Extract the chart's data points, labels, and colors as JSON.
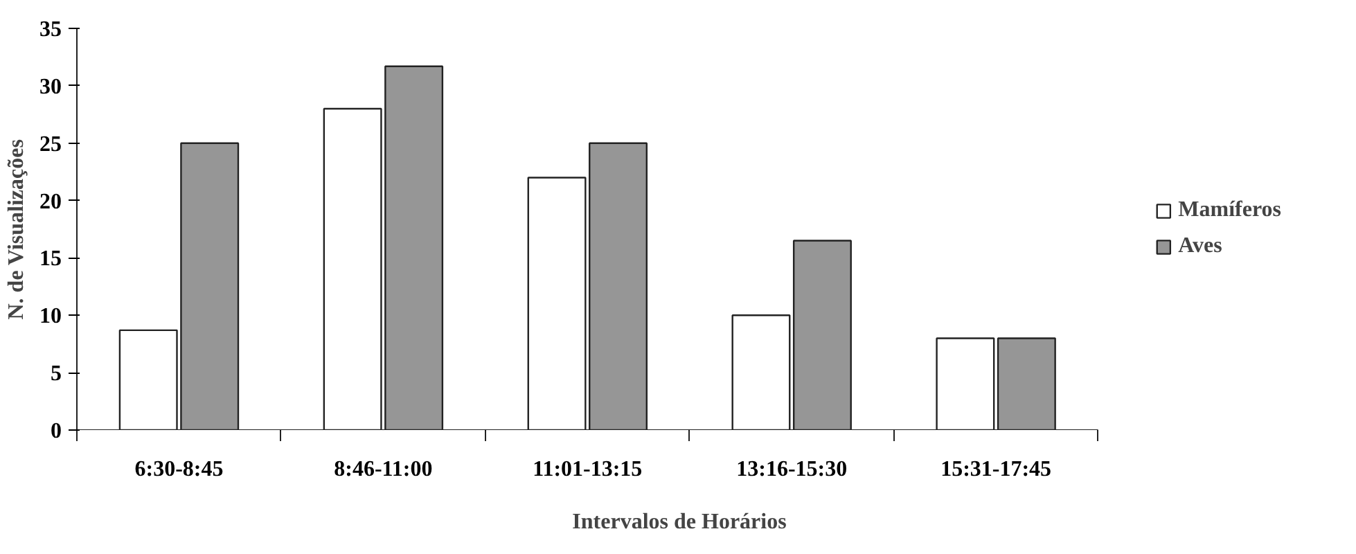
{
  "chart_data": {
    "type": "bar",
    "xlabel": "Intervalos de Horários",
    "ylabel": "N. de Visualizações",
    "categories": [
      "6:30-8:45",
      "8:46-11:00",
      "11:01-13:15",
      "13:16-15:30",
      "15:31-17:45"
    ],
    "series": [
      {
        "name": "Mamíferos",
        "color": "#ffffff",
        "values": [
          8.7,
          28,
          22,
          10,
          8
        ]
      },
      {
        "name": "Aves",
        "color": "#969696",
        "values": [
          25,
          31.7,
          25,
          16.5,
          8
        ]
      }
    ],
    "ylim": [
      0,
      35
    ],
    "yticks": [
      0,
      5,
      10,
      15,
      20,
      25,
      30,
      35
    ],
    "grid": false,
    "legend": "right"
  }
}
